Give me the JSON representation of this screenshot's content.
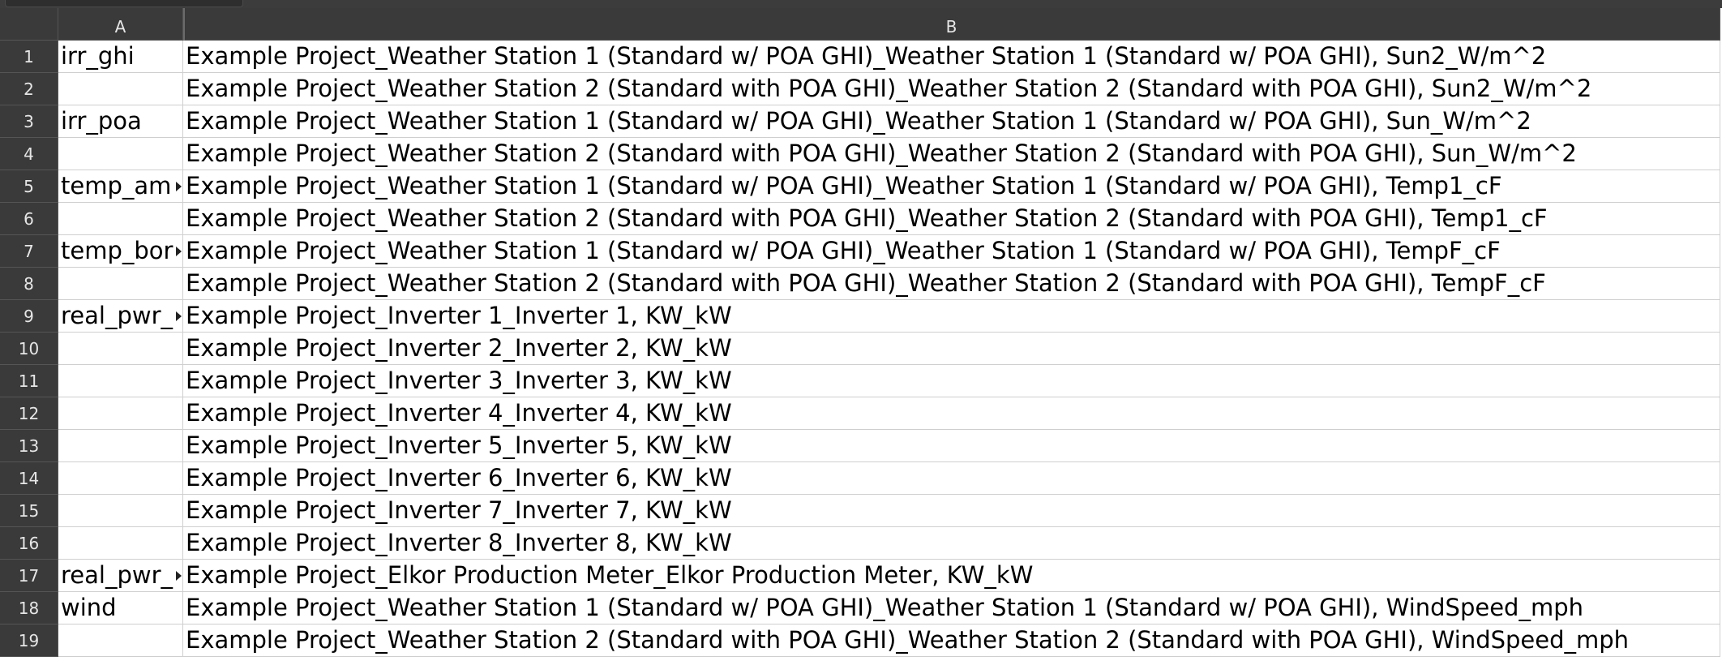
{
  "sheet": {
    "columns": [
      "A",
      "B"
    ],
    "rows": [
      {
        "n": "1",
        "a": "irr_ghi",
        "b": "Example Project_Weather Station 1 (Standard w/ POA GHI)_Weather Station 1 (Standard w/ POA GHI), Sun2_W/m^2",
        "a_truncated": false
      },
      {
        "n": "2",
        "a": "",
        "b": "Example Project_Weather Station 2 (Standard with POA GHI)_Weather Station 2 (Standard with POA GHI), Sun2_W/m^2",
        "a_truncated": false
      },
      {
        "n": "3",
        "a": "irr_poa",
        "b": "Example Project_Weather Station 1 (Standard w/ POA GHI)_Weather Station 1 (Standard w/ POA GHI), Sun_W/m^2",
        "a_truncated": false
      },
      {
        "n": "4",
        "a": "",
        "b": "Example Project_Weather Station 2 (Standard with POA GHI)_Weather Station 2 (Standard with POA GHI), Sun_W/m^2",
        "a_truncated": false
      },
      {
        "n": "5",
        "a": "temp_am",
        "b": "Example Project_Weather Station 1 (Standard w/ POA GHI)_Weather Station 1 (Standard w/ POA GHI), Temp1_cF",
        "a_truncated": true
      },
      {
        "n": "6",
        "a": "",
        "b": "Example Project_Weather Station 2 (Standard with POA GHI)_Weather Station 2 (Standard with POA GHI), Temp1_cF",
        "a_truncated": false
      },
      {
        "n": "7",
        "a": "temp_bor",
        "b": "Example Project_Weather Station 1 (Standard w/ POA GHI)_Weather Station 1 (Standard w/ POA GHI), TempF_cF",
        "a_truncated": true
      },
      {
        "n": "8",
        "a": "",
        "b": "Example Project_Weather Station 2 (Standard with POA GHI)_Weather Station 2 (Standard with POA GHI), TempF_cF",
        "a_truncated": false
      },
      {
        "n": "9",
        "a": "real_pwr_",
        "b": "Example Project_Inverter 1_Inverter 1, KW_kW",
        "a_truncated": true
      },
      {
        "n": "10",
        "a": "",
        "b": "Example Project_Inverter 2_Inverter 2, KW_kW",
        "a_truncated": false
      },
      {
        "n": "11",
        "a": "",
        "b": "Example Project_Inverter 3_Inverter 3, KW_kW",
        "a_truncated": false
      },
      {
        "n": "12",
        "a": "",
        "b": "Example Project_Inverter 4_Inverter 4, KW_kW",
        "a_truncated": false
      },
      {
        "n": "13",
        "a": "",
        "b": "Example Project_Inverter 5_Inverter 5, KW_kW",
        "a_truncated": false
      },
      {
        "n": "14",
        "a": "",
        "b": "Example Project_Inverter 6_Inverter 6, KW_kW",
        "a_truncated": false
      },
      {
        "n": "15",
        "a": "",
        "b": "Example Project_Inverter 7_Inverter 7, KW_kW",
        "a_truncated": false
      },
      {
        "n": "16",
        "a": "",
        "b": "Example Project_Inverter 8_Inverter 8, KW_kW",
        "a_truncated": false
      },
      {
        "n": "17",
        "a": "real_pwr_",
        "b": "Example Project_Elkor Production Meter_Elkor Production Meter, KW_kW",
        "a_truncated": true
      },
      {
        "n": "18",
        "a": "wind",
        "b": "Example Project_Weather Station 1 (Standard w/ POA GHI)_Weather Station 1 (Standard w/ POA GHI), WindSpeed_mph",
        "a_truncated": false
      },
      {
        "n": "19",
        "a": "",
        "b": "Example Project_Weather Station 2 (Standard with POA GHI)_Weather Station 2 (Standard with POA GHI), WindSpeed_mph",
        "a_truncated": false
      }
    ]
  }
}
